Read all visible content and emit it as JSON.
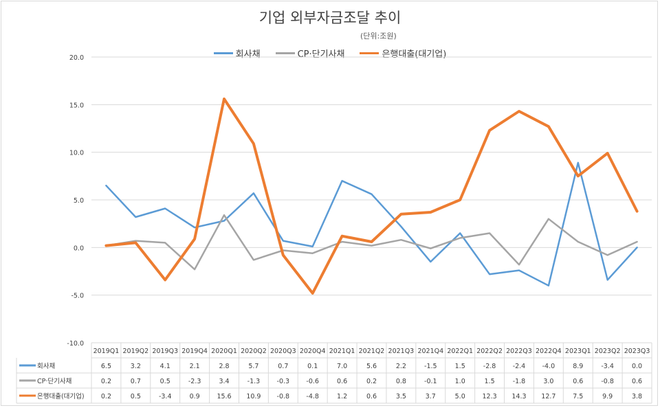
{
  "chart_data": {
    "type": "line",
    "title": "기업 외부자금조달 추이",
    "subtitle": "(단위:조원)",
    "categories": [
      "2019Q1",
      "2019Q2",
      "2019Q3",
      "2019Q4",
      "2020Q1",
      "2020Q2",
      "2020Q3",
      "2020Q4",
      "2021Q1",
      "2021Q2",
      "2021Q3",
      "2021Q4",
      "2022Q1",
      "2022Q2",
      "2022Q3",
      "2022Q4",
      "2023Q1",
      "2023Q2",
      "2023Q3"
    ],
    "series": [
      {
        "name": "회사채",
        "color": "#5b9bd5",
        "values": [
          "6.5",
          "3.2",
          "4.1",
          "2.1",
          "2.8",
          "5.7",
          "0.7",
          "0.1",
          "7.0",
          "5.6",
          "2.2",
          "-1.5",
          "1.5",
          "-2.8",
          "-2.4",
          "-4.0",
          "8.9",
          "-3.4",
          "0.0"
        ]
      },
      {
        "name": "CP·단기사채",
        "color": "#a5a5a5",
        "values": [
          "0.2",
          "0.7",
          "0.5",
          "-2.3",
          "3.4",
          "-1.3",
          "-0.3",
          "-0.6",
          "0.6",
          "0.2",
          "0.8",
          "-0.1",
          "1.0",
          "1.5",
          "-1.8",
          "3.0",
          "0.6",
          "-0.8",
          "0.6"
        ]
      },
      {
        "name": "은행대출(대기업)",
        "color": "#ed7d31",
        "values": [
          "0.2",
          "0.5",
          "-3.4",
          "0.9",
          "15.6",
          "10.9",
          "-0.8",
          "-4.8",
          "1.2",
          "0.6",
          "3.5",
          "3.7",
          "5.0",
          "12.3",
          "14.3",
          "12.7",
          "7.5",
          "9.9",
          "3.8"
        ]
      }
    ],
    "ylim": [
      -10,
      20
    ],
    "yticks": [
      "20.0",
      "15.0",
      "10.0",
      "5.0",
      "0.0",
      "-5.0",
      "-10.0"
    ],
    "grid": true,
    "legend_position": "top",
    "data_table": true
  }
}
